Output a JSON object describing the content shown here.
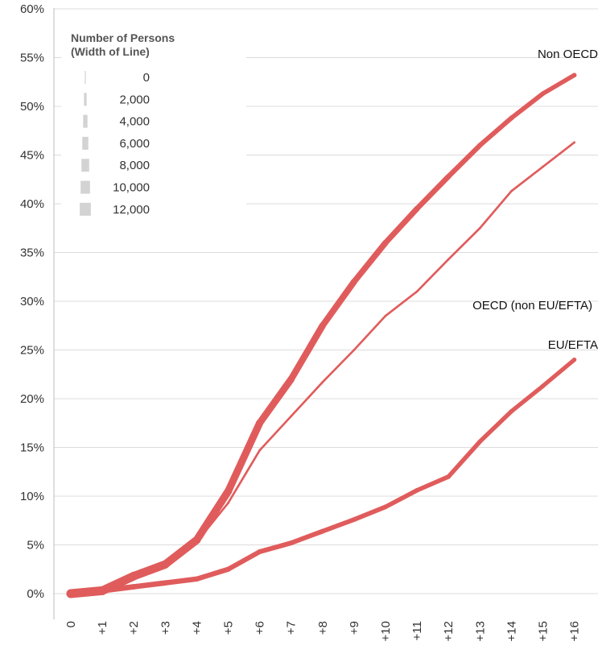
{
  "chart_data": {
    "type": "line",
    "categories": [
      "0",
      "+1",
      "+2",
      "+3",
      "+4",
      "+5",
      "+6",
      "+7",
      "+8",
      "+9",
      "+10",
      "+11",
      "+12",
      "+13",
      "+14",
      "+15",
      "+16"
    ],
    "y_ticks": [
      "0%",
      "5%",
      "10%",
      "15%",
      "20%",
      "25%",
      "30%",
      "35%",
      "40%",
      "45%",
      "50%",
      "55%",
      "60%"
    ],
    "ylim": [
      0,
      60
    ],
    "grid": "horizontal",
    "series": [
      {
        "name": "Non OECD",
        "color": "#e05c5c",
        "values": [
          0,
          0.3,
          1.8,
          3.0,
          5.5,
          10.5,
          17.5,
          22.0,
          27.5,
          32.0,
          36.0,
          39.5,
          42.8,
          46.0,
          48.8,
          51.3,
          53.2
        ],
        "persons": [
          12000,
          12000,
          11500,
          11000,
          10500,
          10000,
          9500,
          9000,
          8500,
          8000,
          7500,
          7000,
          6500,
          6000,
          5800,
          5600,
          5400
        ]
      },
      {
        "name": "OECD (non EU/EFTA)",
        "color": "#e05c5c",
        "values": [
          0,
          0.2,
          1.5,
          2.7,
          5.3,
          9.3,
          14.7,
          18.2,
          21.7,
          25.0,
          28.5,
          31.0,
          34.3,
          37.5,
          41.3,
          43.8,
          46.3
        ],
        "persons": [
          2000,
          2000,
          2000,
          2000,
          2000,
          2000,
          2000,
          2000,
          2000,
          2000,
          2000,
          2000,
          2000,
          2000,
          2000,
          2000,
          2000
        ]
      },
      {
        "name": "EU/EFTA",
        "color": "#e05c5c",
        "values": [
          0,
          0.3,
          0.7,
          1.1,
          1.5,
          2.5,
          4.3,
          5.2,
          6.4,
          7.6,
          8.9,
          10.6,
          12.0,
          15.6,
          18.7,
          21.3,
          24.0
        ],
        "persons": [
          7000,
          7000,
          6800,
          6600,
          6400,
          6200,
          6000,
          5900,
          5800,
          5700,
          5600,
          5500,
          5400,
          5300,
          5200,
          5100,
          5000
        ]
      }
    ],
    "legend": {
      "title_line1": "Number of Persons",
      "title_line2": "(Width of Line)",
      "placement": "top-left",
      "color": "#d3d3d3",
      "entries": [
        {
          "label": "0",
          "persons": 0
        },
        {
          "label": "2,000",
          "persons": 2000
        },
        {
          "label": "4,000",
          "persons": 4000
        },
        {
          "label": "6,000",
          "persons": 6000
        },
        {
          "label": "8,000",
          "persons": 8000
        },
        {
          "label": "10,000",
          "persons": 10000
        },
        {
          "label": "12,000",
          "persons": 12000
        }
      ]
    }
  }
}
